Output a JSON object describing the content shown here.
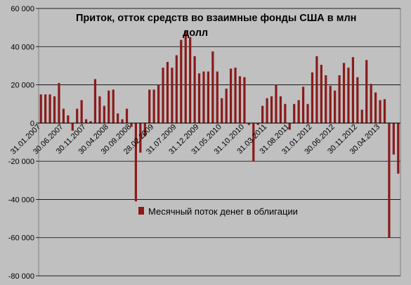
{
  "chart_data": {
    "type": "bar",
    "title": "Приток, отток средств во взаимные фонды США в млн долл",
    "title_lines": [
      "Приток, отток средств во взаимные фонды США в млн",
      "долл"
    ],
    "xlabel": "",
    "ylabel": "",
    "ylim": [
      -80000,
      60000
    ],
    "grid": "horizontal",
    "legend_placement": "center",
    "series": [
      {
        "name": "Месячный поток денег в облигации",
        "color": "#8b1a1a",
        "values": [
          15000,
          15000,
          15000,
          14000,
          21000,
          7500,
          4000,
          -4000,
          7500,
          12000,
          2000,
          1000,
          23000,
          14000,
          9000,
          17000,
          17500,
          5000,
          2000,
          7500,
          -2000,
          -41000,
          -15500,
          -7000,
          17500,
          17500,
          20000,
          29000,
          32000,
          29000,
          35500,
          43500,
          48000,
          45000,
          35000,
          26000,
          27000,
          27000,
          37500,
          27000,
          13000,
          18000,
          28500,
          29000,
          24500,
          24000,
          -1000,
          -20000,
          -1000,
          9000,
          13000,
          14000,
          20000,
          14000,
          10000,
          -3500,
          10000,
          12000,
          19000,
          10000,
          26500,
          35000,
          30500,
          25000,
          19500,
          17000,
          25000,
          31500,
          29000,
          34500,
          24000,
          7000,
          33000,
          20500,
          16000,
          12000,
          12500,
          -60000,
          -16500,
          -26500
        ]
      }
    ],
    "x_tick_labels": [
      "31.01.2007",
      "30.06.2007",
      "30.11.2007",
      "30.04.2008",
      "30.09.2008",
      "28.02.2009",
      "31.07.2009",
      "31.12.2009",
      "31.05.2010",
      "31.10.2010",
      "31.03.2011",
      "31.08.2011",
      "31.01.2012",
      "30.06.2012",
      "30.11.2012",
      "30.04.2013"
    ],
    "y_tick_labels": [
      "60 000",
      "40 000",
      "20 000",
      "0",
      "-20 000",
      "-40 000",
      "-60 000",
      "-80 000"
    ],
    "legend_label": "Месячный поток денег в облигации"
  }
}
